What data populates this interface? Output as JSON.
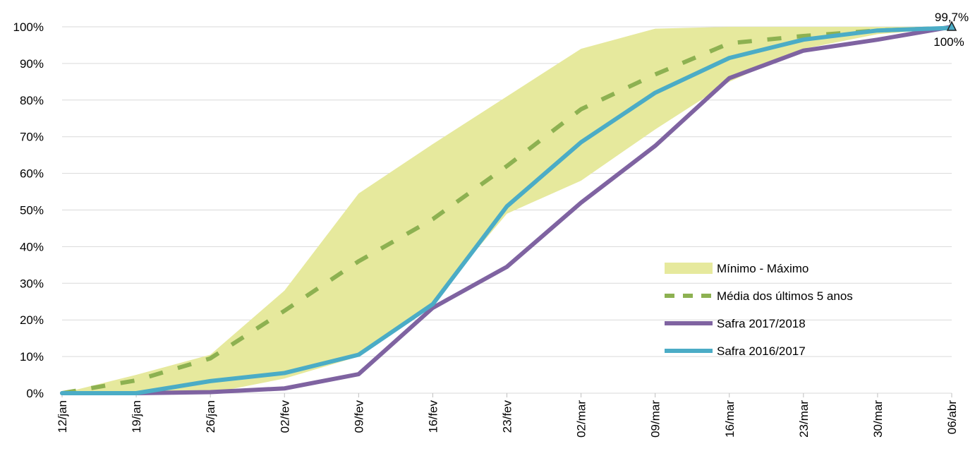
{
  "chart_data": {
    "type": "line",
    "categories": [
      "12/jan",
      "19/jan",
      "26/jan",
      "02/fev",
      "09/fev",
      "16/fev",
      "23/fev",
      "02/mar",
      "09/mar",
      "16/mar",
      "23/mar",
      "30/mar",
      "06/abr"
    ],
    "ylim": [
      0,
      100
    ],
    "y_ticks": [
      "0%",
      "10%",
      "20%",
      "30%",
      "40%",
      "50%",
      "60%",
      "70%",
      "80%",
      "90%",
      "100%"
    ],
    "grid": true,
    "legend_position": "right",
    "band": {
      "name": "Mínimo - Máximo",
      "color": "#e6e99d",
      "min": [
        0,
        0,
        0,
        4,
        10,
        25,
        49,
        58,
        72,
        85,
        94,
        98,
        99.7
      ],
      "max": [
        0,
        5,
        10.5,
        28,
        54.5,
        68,
        81,
        94,
        99.5,
        100,
        100,
        100,
        100
      ]
    },
    "series": [
      {
        "name": "Média dos últimos 5 anos",
        "color": "#8db151",
        "style": "dashed",
        "values": [
          0,
          3.5,
          9.5,
          22.5,
          36,
          47.5,
          62,
          77.5,
          87,
          95.5,
          97.5,
          99,
          99.7
        ]
      },
      {
        "name": "Safra 2017/2018",
        "color": "#7f63a1",
        "style": "solid",
        "values": [
          0,
          0,
          0.3,
          1.3,
          5.2,
          23.3,
          34.5,
          52,
          67.5,
          86,
          93.5,
          96.5,
          100
        ]
      },
      {
        "name": "Safra 2016/2017",
        "color": "#4bacc6",
        "style": "solid",
        "values": [
          0,
          0,
          3.3,
          5.5,
          10.5,
          24.3,
          51,
          68.5,
          82,
          91.5,
          96.5,
          99,
          99.7
        ]
      }
    ],
    "annotations": [
      {
        "text": "99,7%",
        "category": "06/abr",
        "value": 99.7
      },
      {
        "text": "100%",
        "category": "06/abr",
        "value": 100
      }
    ]
  }
}
